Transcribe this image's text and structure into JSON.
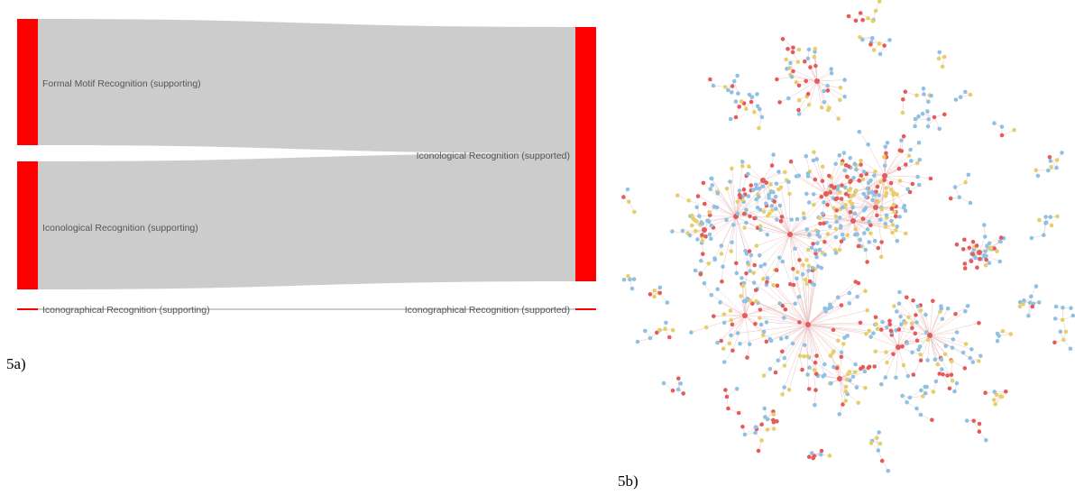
{
  "captions": {
    "left": "5a)",
    "right": "5b)"
  },
  "colors": {
    "node": "#ff0000",
    "link": "#cccccc",
    "net_blue": "#8fc1e3",
    "net_yellow": "#e6cf6b",
    "net_red": "#e55a5a",
    "net_edge": "#e8b4b4"
  },
  "sankey": {
    "source_nodes": [
      {
        "label": "Formal Motif Recognition (supporting)"
      },
      {
        "label": "Iconological Recognition (supporting)"
      },
      {
        "label": "Iconographical Recognition (supporting)"
      }
    ],
    "target_nodes": [
      {
        "label": "Iconological Recognition (supported)"
      },
      {
        "label": "Iconographical Recognition (supported)"
      }
    ],
    "links": [
      {
        "source": "Formal Motif Recognition (supporting)",
        "target": "Iconological Recognition (supported)",
        "value": 140
      },
      {
        "source": "Iconological Recognition (supporting)",
        "target": "Iconological Recognition (supported)",
        "value": 142
      },
      {
        "source": "Iconographical Recognition (supporting)",
        "target": "Iconographical Recognition (supported)",
        "value": 2
      }
    ]
  },
  "network": {
    "node_types": [
      "blue",
      "yellow",
      "red"
    ],
    "approx_node_count": 900
  }
}
